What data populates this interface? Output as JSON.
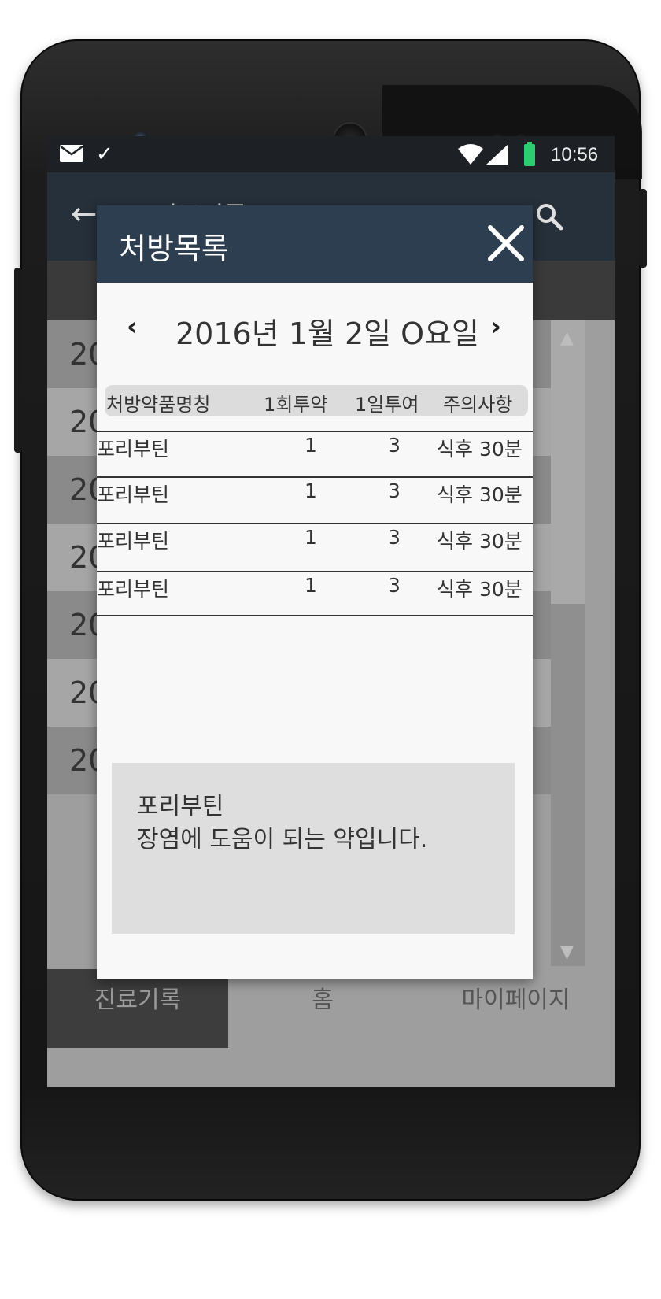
{
  "status_bar": {
    "time": "10:56"
  },
  "app_bar": {
    "back_symbol": "←",
    "title": "진료기록"
  },
  "background_list": {
    "rows": [
      "20",
      "20",
      "20",
      "20",
      "20",
      "20",
      "20"
    ]
  },
  "bottom_nav": {
    "items": [
      "진료기록",
      "홈",
      "마이페이지"
    ]
  },
  "modal": {
    "title": "처방목록",
    "date": "2016년 1월 2일  O요일",
    "prev_symbol": "‹",
    "next_symbol": "›",
    "columns": [
      "처방약품명칭",
      "1회투약",
      "1일투여",
      "주의사항"
    ],
    "rows": [
      {
        "name": "포리부틴",
        "dose_per_time": "1",
        "times_per_day": "3",
        "caution": "식후 30분"
      },
      {
        "name": "포리부틴",
        "dose_per_time": "1",
        "times_per_day": "3",
        "caution": "식후 30분"
      },
      {
        "name": "포리부틴",
        "dose_per_time": "1",
        "times_per_day": "3",
        "caution": "식후 30분"
      },
      {
        "name": "포리부틴",
        "dose_per_time": "1",
        "times_per_day": "3",
        "caution": "식후 30분"
      }
    ],
    "description": {
      "name": "포리부틴",
      "text": "장염에 도움이 되는 약입니다."
    }
  },
  "colors": {
    "modal_header": "#2c3e50",
    "app_bar": "#26303a",
    "status_bar": "#1d2126",
    "battery": "#2ecc71"
  }
}
